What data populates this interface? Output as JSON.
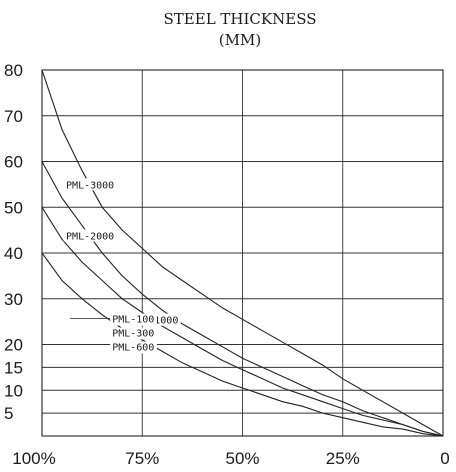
{
  "chart_data": {
    "type": "line",
    "title_lines": [
      "STEEL THICKNESS",
      "(MM)"
    ],
    "xlabel": "",
    "ylabel": "",
    "x_ticks": [
      "100%",
      "75%",
      "50%",
      "25%",
      "0"
    ],
    "x_values": [
      100,
      75,
      50,
      25,
      0
    ],
    "xlim": [
      100,
      0
    ],
    "y_ticks": [
      "80",
      "70",
      "60",
      "50",
      "40",
      "30",
      "20",
      "15",
      "10",
      "5"
    ],
    "y_tick_values": [
      80,
      70,
      60,
      50,
      40,
      30,
      20,
      15,
      10,
      5
    ],
    "ylim": [
      0,
      80
    ],
    "grid": true,
    "series": [
      {
        "name": "PML-3000",
        "x": [
          100,
          95,
          90,
          85,
          80,
          75,
          70,
          65,
          60,
          55,
          50,
          45,
          40,
          35,
          30,
          25,
          20,
          15,
          10,
          5,
          0
        ],
        "values": [
          80,
          67,
          58,
          50,
          45,
          41,
          37,
          34,
          31,
          28,
          25.5,
          23,
          20.5,
          18,
          15.5,
          12.5,
          10,
          7.5,
          5,
          2.5,
          0
        ]
      },
      {
        "name": "PML-2000",
        "x": [
          100,
          95,
          90,
          85,
          80,
          75,
          70,
          65,
          60,
          55,
          50,
          45,
          40,
          35,
          30,
          25,
          20,
          15,
          10,
          5,
          0
        ],
        "values": [
          60,
          52,
          46,
          40,
          35,
          31,
          27.5,
          24.5,
          22,
          19.5,
          17,
          15,
          13,
          11,
          9,
          7.5,
          5.5,
          4,
          2.5,
          1,
          0
        ]
      },
      {
        "name": "PML-1000",
        "x": [
          100,
          95,
          90,
          85,
          80,
          75,
          70,
          65,
          60,
          55,
          50,
          45,
          40,
          35,
          30,
          25,
          20,
          15,
          10,
          5,
          0
        ],
        "values": [
          50,
          43,
          38,
          34,
          30,
          27,
          24,
          21.5,
          19,
          16.5,
          14.5,
          12.5,
          10.5,
          9,
          7.5,
          6,
          4.5,
          3.5,
          2.5,
          1,
          0
        ]
      },
      {
        "name": "PML-100\nPML-300\nPML-600",
        "x": [
          100,
          95,
          90,
          85,
          80,
          75,
          70,
          65,
          60,
          55,
          50,
          45,
          40,
          35,
          30,
          25,
          20,
          15,
          10,
          5,
          0
        ],
        "values": [
          40,
          34,
          30,
          26.5,
          23.5,
          21,
          18.5,
          16,
          14,
          12,
          10.5,
          9,
          7.5,
          6.5,
          5,
          4,
          3,
          2,
          1.5,
          0.5,
          0
        ]
      }
    ],
    "series_labels": [
      {
        "lines": [
          "PML-3000"
        ],
        "series": 0,
        "anchor_x": 88
      },
      {
        "lines": [
          "PML-2000"
        ],
        "series": 1,
        "anchor_x": 88
      },
      {
        "lines": [
          "PML-1000"
        ],
        "series": 2,
        "anchor_x": 72
      },
      {
        "lines": [
          "PML-100",
          "PML-300",
          "PML-600"
        ],
        "series": 3,
        "anchor_x": 80
      }
    ]
  }
}
